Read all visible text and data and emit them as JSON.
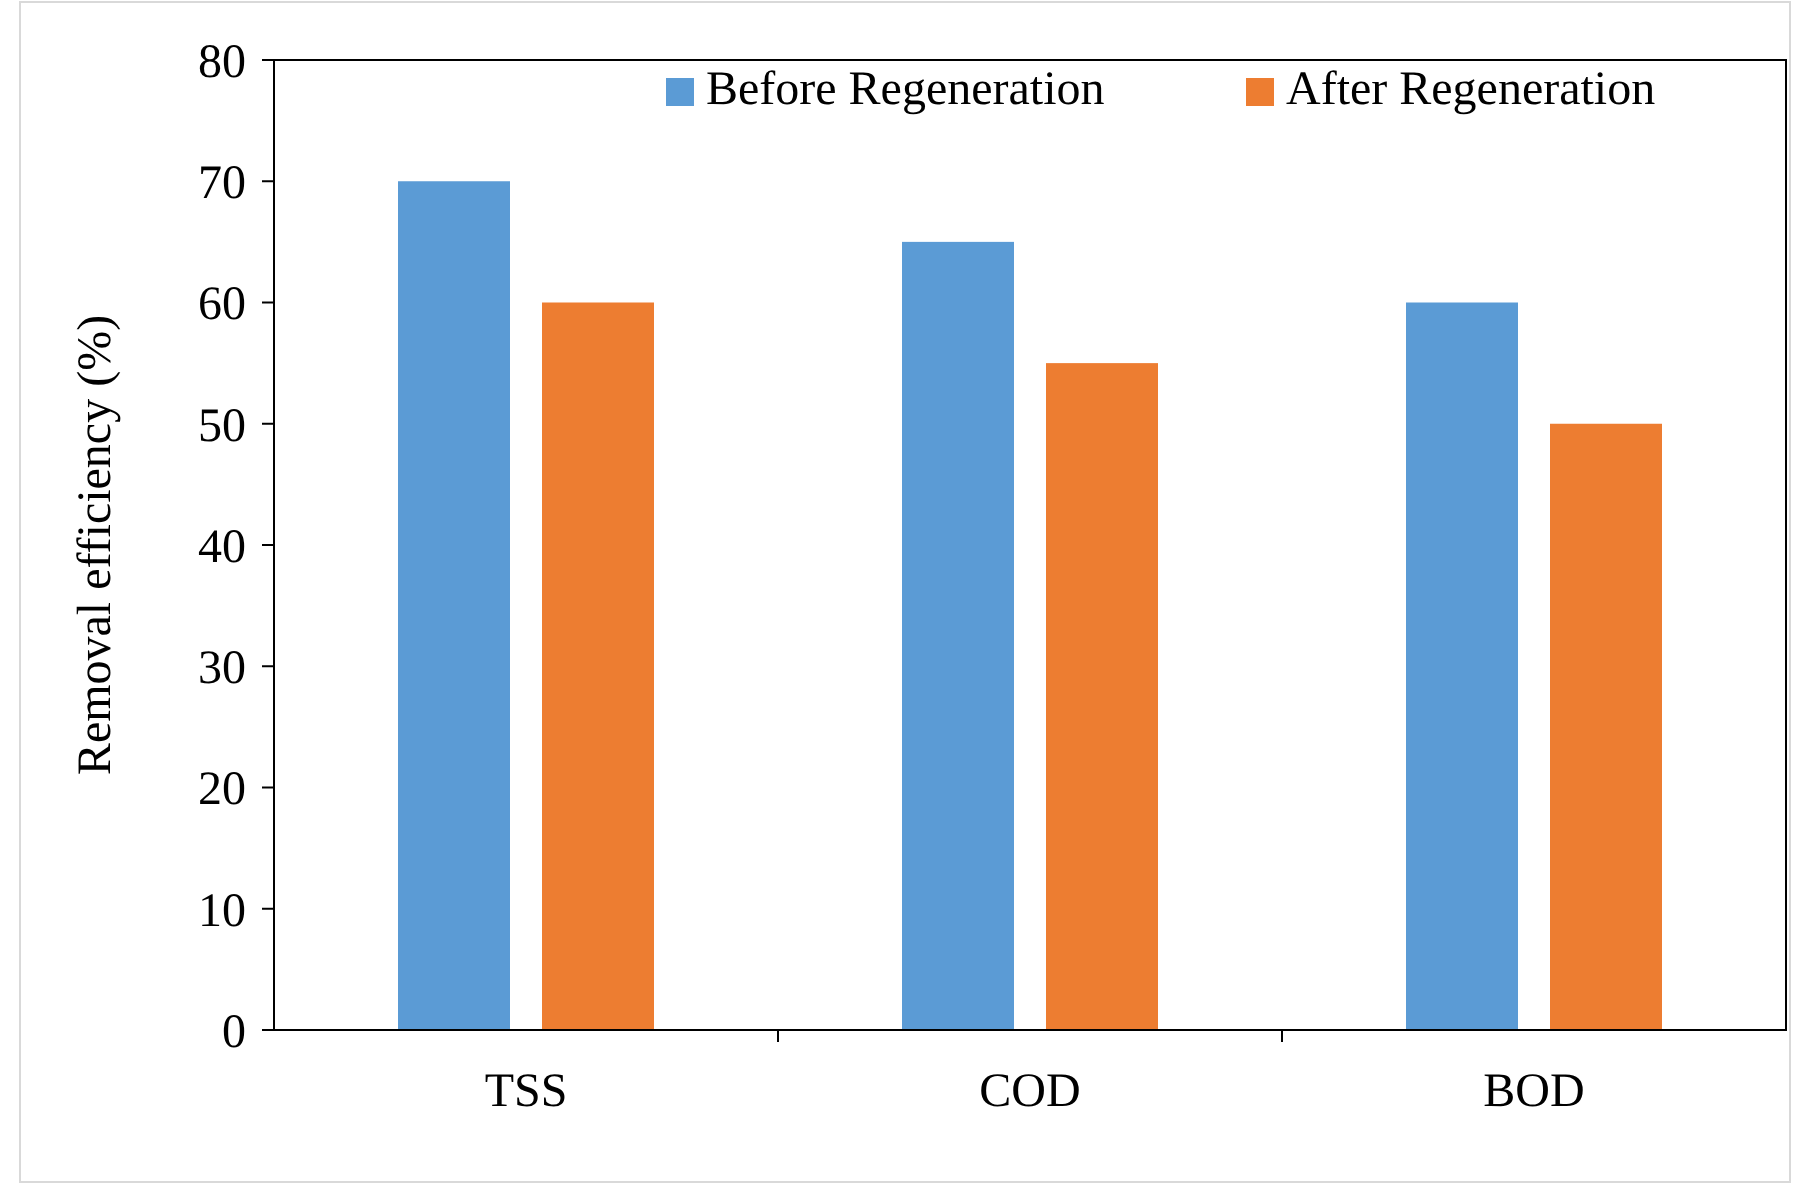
{
  "chart_data": {
    "type": "bar",
    "ylabel": "Removal efficiency (%)",
    "categories": [
      "TSS",
      "COD",
      "BOD"
    ],
    "series": [
      {
        "name": "Before Regeneration",
        "color": "#5b9bd5",
        "values": [
          70,
          65,
          60
        ]
      },
      {
        "name": "After Regeneration",
        "color": "#ed7d31",
        "values": [
          60,
          55,
          50
        ]
      }
    ],
    "ylim": [
      0,
      80
    ],
    "yticks": [
      0,
      10,
      20,
      30,
      40,
      50,
      60,
      70,
      80
    ],
    "grid": false,
    "legend": "top right"
  }
}
